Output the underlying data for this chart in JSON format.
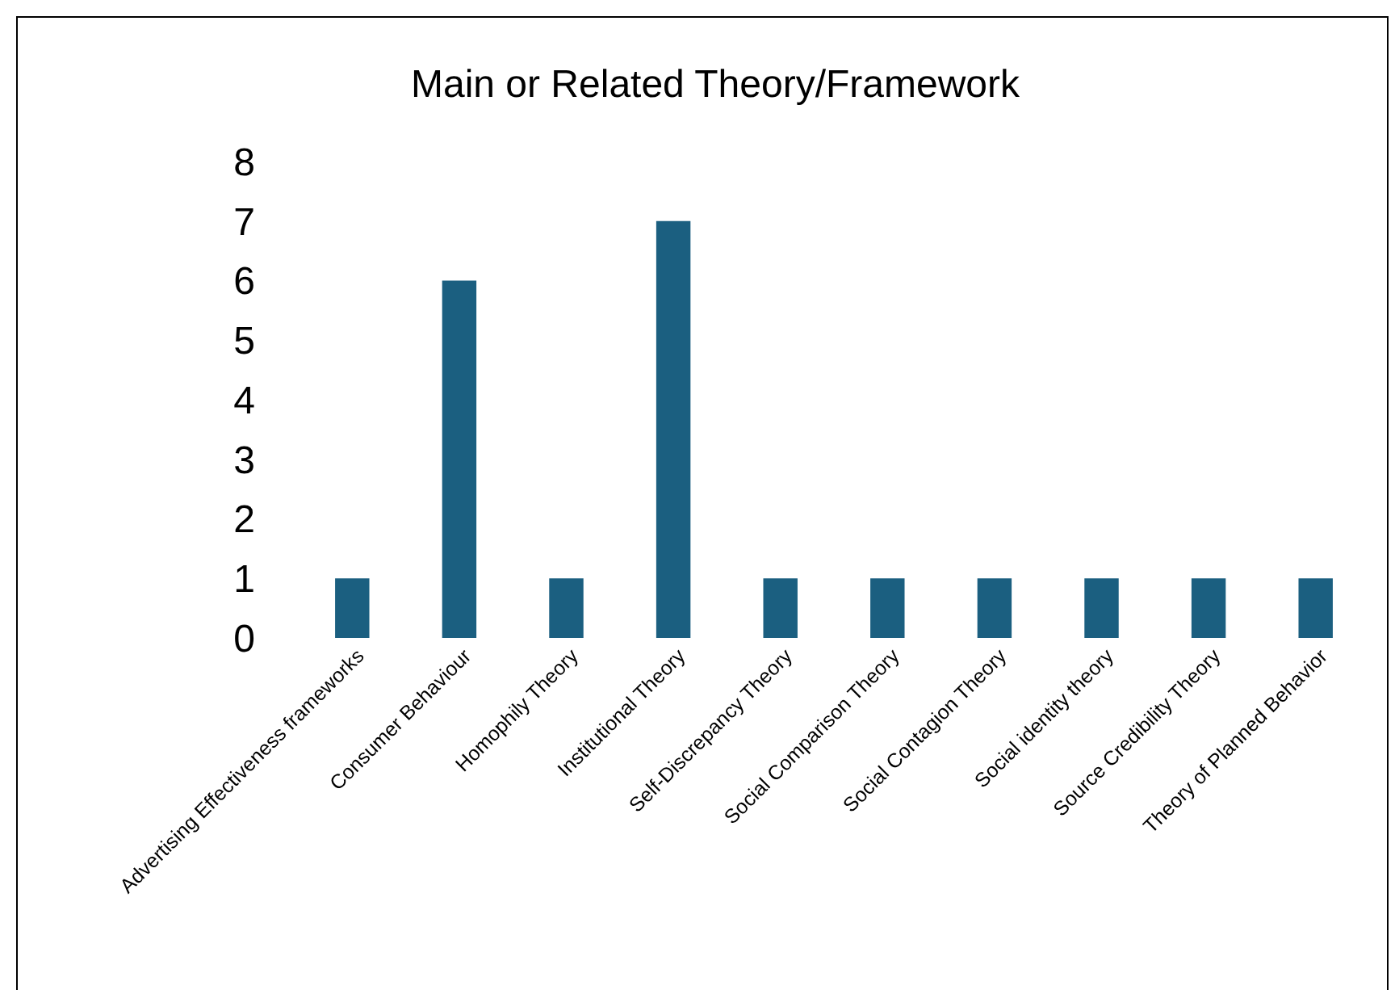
{
  "chart_data": {
    "type": "bar",
    "title": "Main or Related Theory/Framework",
    "categories": [
      "Advertising Effectiveness frameworks",
      "Consumer Behaviour",
      "Homophily Theory",
      "Institutional Theory",
      "Self-Discrepancy Theory",
      "Social Comparison Theory",
      "Social Contagion Theory",
      "Social identity theory",
      "Source Credibility Theory",
      "Theory of Planned Behavior"
    ],
    "values": [
      1,
      6,
      1,
      7,
      1,
      1,
      1,
      1,
      1,
      1
    ],
    "color": "#1b5f80",
    "ylim": [
      0,
      8
    ],
    "yticks": [
      0,
      1,
      2,
      3,
      4,
      5,
      6,
      7,
      8
    ],
    "grid": false
  }
}
